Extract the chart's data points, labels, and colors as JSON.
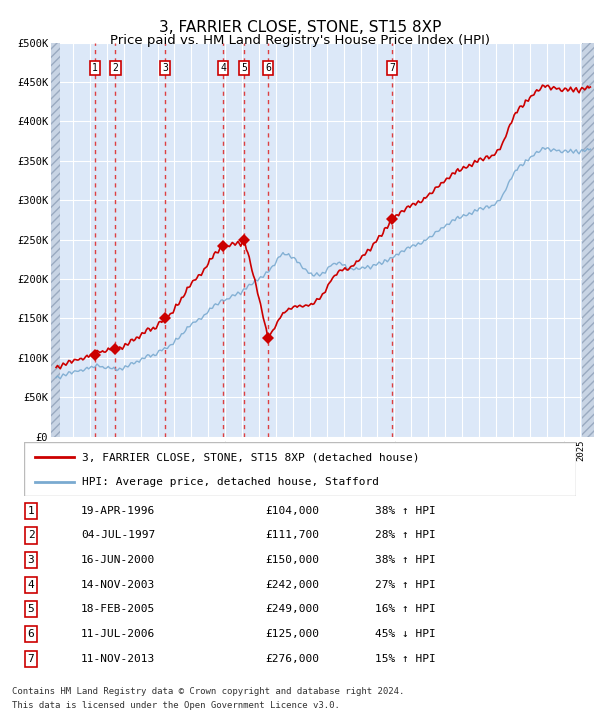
{
  "title": "3, FARRIER CLOSE, STONE, ST15 8XP",
  "subtitle": "Price paid vs. HM Land Registry's House Price Index (HPI)",
  "title_fontsize": 11,
  "subtitle_fontsize": 9.5,
  "ylim": [
    0,
    500000
  ],
  "yticks": [
    0,
    50000,
    100000,
    150000,
    200000,
    250000,
    300000,
    350000,
    400000,
    450000,
    500000
  ],
  "ytick_labels": [
    "£0",
    "£50K",
    "£100K",
    "£150K",
    "£200K",
    "£250K",
    "£300K",
    "£350K",
    "£400K",
    "£450K",
    "£500K"
  ],
  "xlim_start": 1993.7,
  "xlim_end": 2025.8,
  "sales": [
    {
      "num": 1,
      "year": 1996.3,
      "price": 104000,
      "label": "19-APR-1996",
      "pct": "38%",
      "dir": "↑"
    },
    {
      "num": 2,
      "year": 1997.51,
      "price": 111700,
      "label": "04-JUL-1997",
      "pct": "28%",
      "dir": "↑"
    },
    {
      "num": 3,
      "year": 2000.46,
      "price": 150000,
      "label": "16-JUN-2000",
      "pct": "38%",
      "dir": "↑"
    },
    {
      "num": 4,
      "year": 2003.87,
      "price": 242000,
      "label": "14-NOV-2003",
      "pct": "27%",
      "dir": "↑"
    },
    {
      "num": 5,
      "year": 2005.13,
      "price": 249000,
      "label": "18-FEB-2005",
      "pct": "16%",
      "dir": "↑"
    },
    {
      "num": 6,
      "year": 2006.53,
      "price": 125000,
      "label": "11-JUL-2006",
      "pct": "45%",
      "dir": "↓"
    },
    {
      "num": 7,
      "year": 2013.87,
      "price": 276000,
      "label": "11-NOV-2013",
      "pct": "15%",
      "dir": "↑"
    }
  ],
  "legend_property_label": "3, FARRIER CLOSE, STONE, ST15 8XP (detached house)",
  "legend_hpi_label": "HPI: Average price, detached house, Stafford",
  "footer_line1": "Contains HM Land Registry data © Crown copyright and database right 2024.",
  "footer_line2": "This data is licensed under the Open Government Licence v3.0.",
  "property_line_color": "#cc0000",
  "hpi_line_color": "#7aaad0",
  "sale_marker_color": "#cc0000",
  "dashed_line_color": "#dd2222",
  "plot_bg_color": "#dce8f8",
  "grid_color": "#ffffff",
  "label_box_color": "#cc0000"
}
